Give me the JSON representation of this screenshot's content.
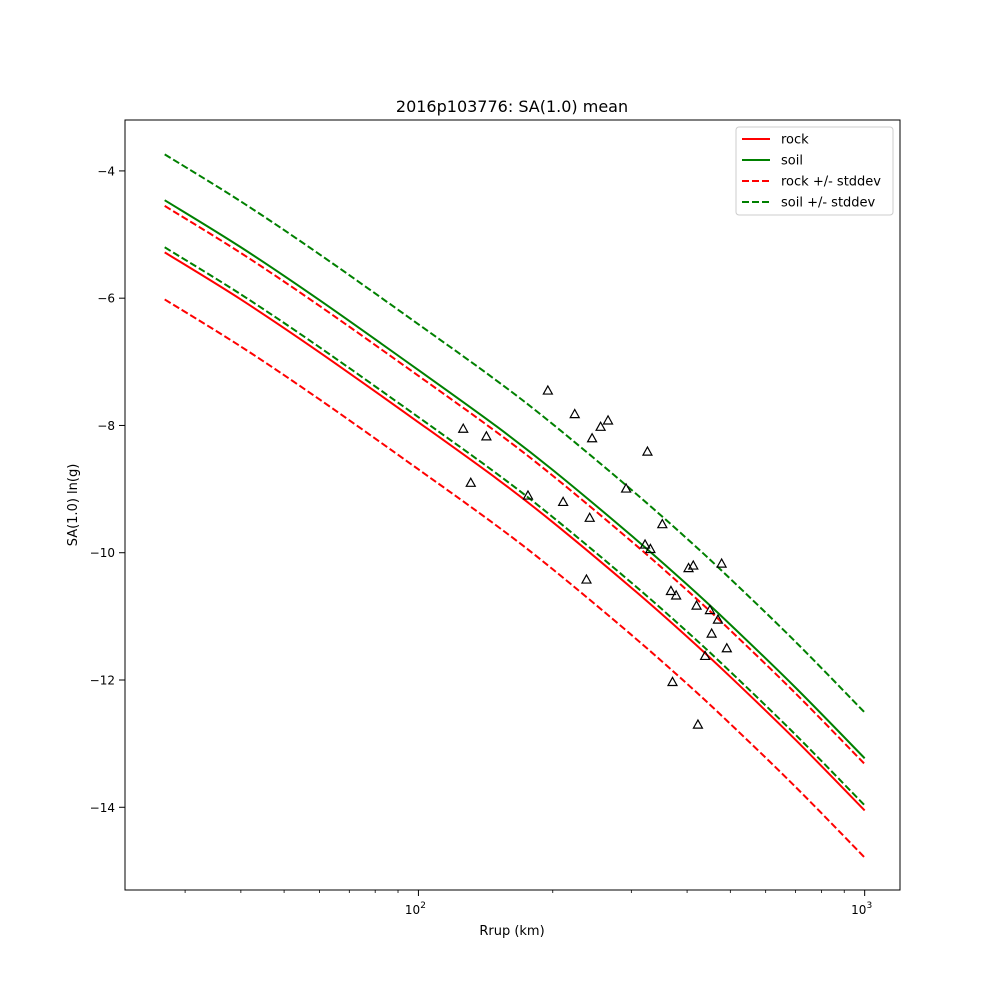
{
  "chart_data": {
    "type": "line",
    "title": "2016p103776: SA(1.0) mean",
    "xlabel": "Rrup (km)",
    "ylabel": "SA(1.0) ln(g)",
    "xscale": "log",
    "xlim": [
      22,
      1200
    ],
    "ylim": [
      -15.3,
      -3.2
    ],
    "grid": false,
    "legend_position": "top-right",
    "x_ticks": [
      {
        "value": 100,
        "base": "10",
        "exp": "2"
      },
      {
        "value": 1000,
        "base": "10",
        "exp": "3"
      }
    ],
    "y_ticks": [
      {
        "value": -4,
        "label": "−4"
      },
      {
        "value": -6,
        "label": "−6"
      },
      {
        "value": -8,
        "label": "−8"
      },
      {
        "value": -10,
        "label": "−10"
      },
      {
        "value": -12,
        "label": "−12"
      },
      {
        "value": -14,
        "label": "−14"
      }
    ],
    "x": [
      27,
      40,
      60,
      100,
      150,
      200,
      300,
      400,
      500,
      700,
      1000
    ],
    "series": [
      {
        "name": "rock",
        "color": "#ff0000",
        "dash": "solid",
        "values": [
          -5.28,
          -6.02,
          -6.85,
          -7.95,
          -8.84,
          -9.52,
          -10.55,
          -11.32,
          -11.95,
          -12.94,
          -14.05
        ]
      },
      {
        "name": "soil",
        "color": "#008000",
        "dash": "solid",
        "values": [
          -4.46,
          -5.2,
          -6.03,
          -7.13,
          -8.02,
          -8.7,
          -9.73,
          -10.5,
          -11.13,
          -12.12,
          -13.23
        ]
      },
      {
        "name": "rock +/- stddev",
        "color": "#ff0000",
        "dash": "dashed",
        "values": [
          -4.55,
          -5.29,
          -6.12,
          -7.22,
          -8.11,
          -8.79,
          -9.82,
          -10.59,
          -11.22,
          -12.21,
          -13.32
        ]
      },
      {
        "name": "",
        "color": "#ff0000",
        "dash": "dashed",
        "values": [
          -6.02,
          -6.76,
          -7.59,
          -8.69,
          -9.58,
          -10.26,
          -11.29,
          -12.06,
          -12.69,
          -13.68,
          -14.79
        ]
      },
      {
        "name": "soil +/- stddev",
        "color": "#008000",
        "dash": "dashed",
        "values": [
          -3.74,
          -4.48,
          -5.31,
          -6.41,
          -7.3,
          -7.98,
          -9.01,
          -9.78,
          -10.41,
          -11.4,
          -12.51
        ]
      },
      {
        "name": "",
        "color": "#008000",
        "dash": "dashed",
        "values": [
          -5.2,
          -5.94,
          -6.77,
          -7.87,
          -8.76,
          -9.44,
          -10.47,
          -11.24,
          -11.87,
          -12.86,
          -13.97
        ]
      }
    ],
    "observations": {
      "marker": "triangle",
      "color": "#000000",
      "points": [
        {
          "x": 126,
          "y": -8.05
        },
        {
          "x": 131,
          "y": -8.9
        },
        {
          "x": 142,
          "y": -8.17
        },
        {
          "x": 176,
          "y": -9.1
        },
        {
          "x": 195,
          "y": -7.45
        },
        {
          "x": 211,
          "y": -9.2
        },
        {
          "x": 224,
          "y": -7.82
        },
        {
          "x": 238,
          "y": -10.42
        },
        {
          "x": 242,
          "y": -9.45
        },
        {
          "x": 245,
          "y": -8.2
        },
        {
          "x": 256,
          "y": -8.02
        },
        {
          "x": 266,
          "y": -7.92
        },
        {
          "x": 292,
          "y": -8.99
        },
        {
          "x": 322,
          "y": -9.87
        },
        {
          "x": 326,
          "y": -8.41
        },
        {
          "x": 331,
          "y": -9.94
        },
        {
          "x": 352,
          "y": -9.55
        },
        {
          "x": 368,
          "y": -10.6
        },
        {
          "x": 371,
          "y": -12.03
        },
        {
          "x": 378,
          "y": -10.67
        },
        {
          "x": 403,
          "y": -10.24
        },
        {
          "x": 413,
          "y": -10.2
        },
        {
          "x": 420,
          "y": -10.83
        },
        {
          "x": 423,
          "y": -12.7
        },
        {
          "x": 439,
          "y": -11.62
        },
        {
          "x": 450,
          "y": -10.9
        },
        {
          "x": 454,
          "y": -11.27
        },
        {
          "x": 469,
          "y": -11.05
        },
        {
          "x": 478,
          "y": -10.17
        },
        {
          "x": 491,
          "y": -11.5
        }
      ]
    }
  }
}
